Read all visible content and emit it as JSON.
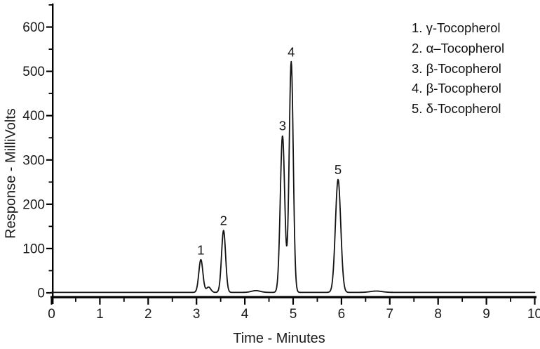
{
  "chart_data": {
    "type": "line",
    "title": "",
    "xlabel": "Time - Minutes",
    "ylabel": "Response - MilliVolts",
    "xlim": [
      0,
      10
    ],
    "ylim": [
      0,
      650
    ],
    "grid": false,
    "line_color": "#131313",
    "axis_color": "#000000",
    "x_major_ticks": [
      0,
      1,
      2,
      3,
      4,
      5,
      6,
      7,
      8,
      9,
      10
    ],
    "x_tick_labels": [
      "0",
      "1",
      "2",
      "3",
      "4",
      "5",
      "6",
      "7",
      "8",
      "9",
      "10"
    ],
    "x_minor_step": 0.5,
    "y_major_ticks": [
      0,
      100,
      200,
      300,
      400,
      500,
      600
    ],
    "y_tick_labels": [
      "0",
      "100",
      "200",
      "300",
      "400",
      "500",
      "600"
    ],
    "y_minor_step": 50,
    "trace_baseline_mv": 1,
    "peaks": [
      {
        "label": "1",
        "time_min": 3.09,
        "height_mv": 74,
        "sigma_min": 0.042
      },
      {
        "label": "",
        "time_min": 3.25,
        "height_mv": 12,
        "sigma_min": 0.045
      },
      {
        "label": "2",
        "time_min": 3.56,
        "height_mv": 140,
        "sigma_min": 0.042
      },
      {
        "label": "",
        "time_min": 4.23,
        "height_mv": 4,
        "sigma_min": 0.09
      },
      {
        "label": "3",
        "time_min": 4.78,
        "height_mv": 354,
        "sigma_min": 0.046
      },
      {
        "label": "4",
        "time_min": 4.96,
        "height_mv": 521,
        "sigma_min": 0.042
      },
      {
        "label": "5",
        "time_min": 5.93,
        "height_mv": 255,
        "sigma_min": 0.055
      },
      {
        "label": "",
        "time_min": 6.72,
        "height_mv": 3,
        "sigma_min": 0.12
      }
    ],
    "legend_position": "top-right",
    "legend": [
      "1. γ-Tocopherol",
      "2. α–Tocopherol",
      "3. β-Tocopherol",
      "4. β-Tocopherol",
      "5. δ-Tocopherol"
    ]
  }
}
